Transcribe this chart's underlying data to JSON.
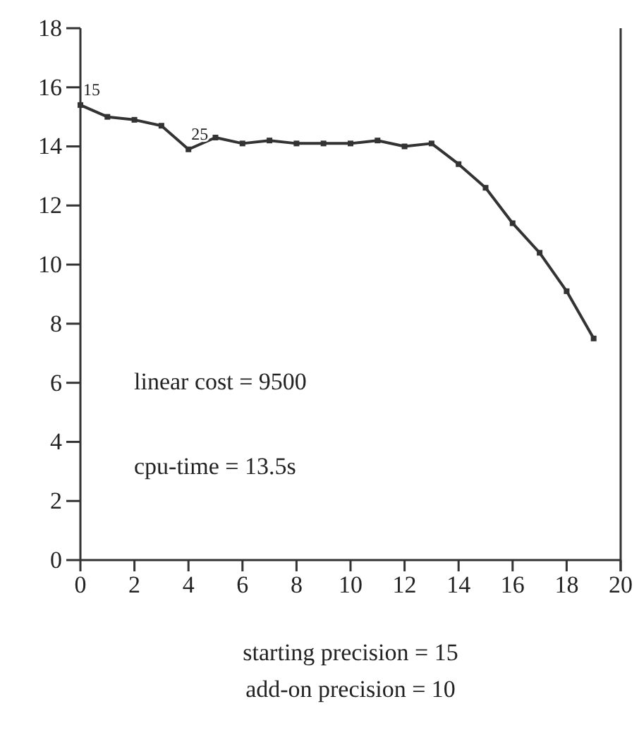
{
  "chart_data": {
    "type": "line",
    "xlabel": "starting precision = 15",
    "x": [
      0,
      1,
      2,
      3,
      4,
      5,
      6,
      7,
      8,
      9,
      10,
      11,
      12,
      13,
      14,
      15,
      16,
      17,
      18,
      19
    ],
    "series": [
      {
        "color": "#333333",
        "values": [
          15.4,
          15.0,
          14.9,
          14.7,
          13.9,
          14.3,
          14.1,
          14.2,
          14.1,
          14.1,
          14.1,
          14.2,
          14.0,
          14.1,
          13.4,
          12.6,
          11.4,
          10.4,
          9.1,
          7.5
        ]
      }
    ],
    "xlim": [
      0,
      20
    ],
    "xticks": [
      0,
      2,
      4,
      6,
      8,
      10,
      12,
      14,
      16,
      18,
      20
    ],
    "ylim": [
      0,
      18
    ],
    "yticks": [
      0,
      2,
      4,
      6,
      8,
      10,
      12,
      14,
      16,
      18
    ],
    "marker": "square",
    "line_style": "solid",
    "grid": false,
    "annotations": [
      "add-on precision = 10",
      "linear cost = 9500",
      "cpu-time = 13.5s",
      {
        "text": "15",
        "x": 0,
        "y": 15.4
      },
      {
        "text": "25",
        "x": 4,
        "y": 13.9
      }
    ]
  }
}
